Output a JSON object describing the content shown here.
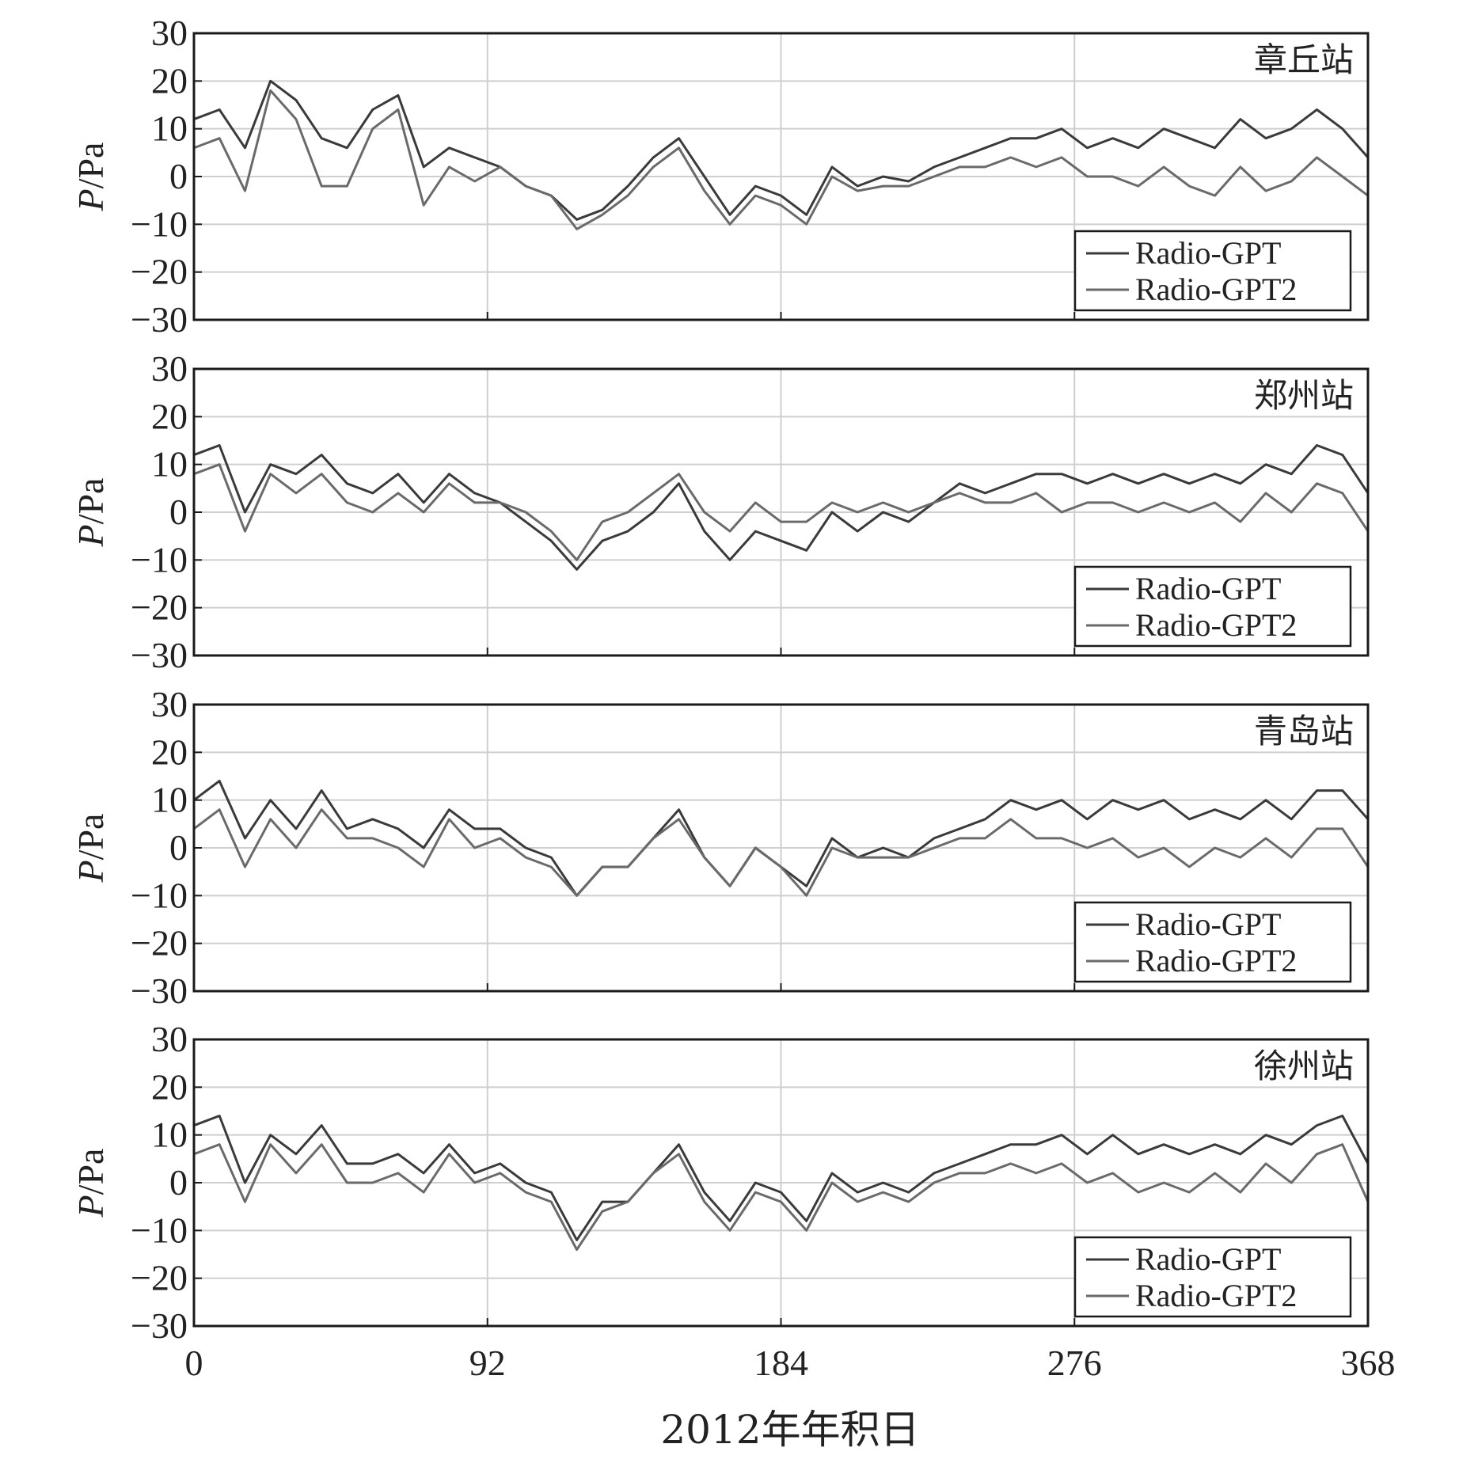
{
  "figure": {
    "xlabel": "2012年年积日",
    "colors": {
      "axes": "#1a1a1a",
      "grid": "#cfcfcf",
      "series_gpt": "#3a3a3a",
      "series_gpt2": "#6a6a6a"
    }
  },
  "chart_data": [
    {
      "type": "line",
      "station": "章丘站",
      "ylabel_italic": "P",
      "ylabel_unit": "/Pa",
      "xlim": [
        0,
        368
      ],
      "ylim": [
        -30,
        30
      ],
      "xticks": [
        0,
        92,
        184,
        276,
        368
      ],
      "yticks": [
        30,
        20,
        10,
        0,
        -10,
        -20,
        -30
      ],
      "ytick_labels": [
        "30",
        "20",
        "10",
        "0",
        "−10",
        "−20",
        "−30"
      ],
      "grid": true,
      "legend": "bottom-right",
      "series": [
        {
          "name": "Radio-GPT",
          "x": [
            0,
            8,
            16,
            24,
            32,
            40,
            48,
            56,
            64,
            72,
            80,
            88,
            96,
            104,
            112,
            120,
            128,
            136,
            144,
            152,
            160,
            168,
            176,
            184,
            192,
            200,
            208,
            216,
            224,
            232,
            240,
            248,
            256,
            264,
            272,
            280,
            288,
            296,
            304,
            312,
            320,
            328,
            336,
            344,
            352,
            360,
            368
          ],
          "values": [
            12,
            14,
            6,
            20,
            16,
            8,
            6,
            14,
            17,
            2,
            6,
            4,
            2,
            -2,
            -4,
            -9,
            -7,
            -2,
            4,
            8,
            0,
            -8,
            -2,
            -4,
            -8,
            2,
            -2,
            0,
            -1,
            2,
            4,
            6,
            8,
            8,
            10,
            6,
            8,
            6,
            10,
            8,
            6,
            12,
            8,
            10,
            14,
            10,
            4
          ]
        },
        {
          "name": "Radio-GPT2",
          "x": [
            0,
            8,
            16,
            24,
            32,
            40,
            48,
            56,
            64,
            72,
            80,
            88,
            96,
            104,
            112,
            120,
            128,
            136,
            144,
            152,
            160,
            168,
            176,
            184,
            192,
            200,
            208,
            216,
            224,
            232,
            240,
            248,
            256,
            264,
            272,
            280,
            288,
            296,
            304,
            312,
            320,
            328,
            336,
            344,
            352,
            360,
            368
          ],
          "values": [
            6,
            8,
            -3,
            18,
            12,
            -2,
            -2,
            10,
            14,
            -6,
            2,
            -1,
            2,
            -2,
            -4,
            -11,
            -8,
            -4,
            2,
            6,
            -3,
            -10,
            -4,
            -6,
            -10,
            0,
            -3,
            -2,
            -2,
            0,
            2,
            2,
            4,
            2,
            4,
            0,
            0,
            -2,
            2,
            -2,
            -4,
            2,
            -3,
            -1,
            4,
            0,
            -4
          ]
        }
      ]
    },
    {
      "type": "line",
      "station": "郑州站",
      "ylabel_italic": "P",
      "ylabel_unit": "/Pa",
      "xlim": [
        0,
        368
      ],
      "ylim": [
        -30,
        30
      ],
      "xticks": [
        0,
        92,
        184,
        276,
        368
      ],
      "yticks": [
        30,
        20,
        10,
        0,
        -10,
        -20,
        -30
      ],
      "ytick_labels": [
        "30",
        "20",
        "10",
        "0",
        "−10",
        "−20",
        "−30"
      ],
      "grid": true,
      "legend": "bottom-right",
      "series": [
        {
          "name": "Radio-GPT",
          "x": [
            0,
            8,
            16,
            24,
            32,
            40,
            48,
            56,
            64,
            72,
            80,
            88,
            96,
            104,
            112,
            120,
            128,
            136,
            144,
            152,
            160,
            168,
            176,
            184,
            192,
            200,
            208,
            216,
            224,
            232,
            240,
            248,
            256,
            264,
            272,
            280,
            288,
            296,
            304,
            312,
            320,
            328,
            336,
            344,
            352,
            360,
            368
          ],
          "values": [
            12,
            14,
            0,
            10,
            8,
            12,
            6,
            4,
            8,
            2,
            8,
            4,
            2,
            -2,
            -6,
            -12,
            -6,
            -4,
            0,
            6,
            -4,
            -10,
            -4,
            -6,
            -8,
            0,
            -4,
            0,
            -2,
            2,
            6,
            4,
            6,
            8,
            8,
            6,
            8,
            6,
            8,
            6,
            8,
            6,
            10,
            8,
            14,
            12,
            4
          ]
        },
        {
          "name": "Radio-GPT2",
          "x": [
            0,
            8,
            16,
            24,
            32,
            40,
            48,
            56,
            64,
            72,
            80,
            88,
            96,
            104,
            112,
            120,
            128,
            136,
            144,
            152,
            160,
            168,
            176,
            184,
            192,
            200,
            208,
            216,
            224,
            232,
            240,
            248,
            256,
            264,
            272,
            280,
            288,
            296,
            304,
            312,
            320,
            328,
            336,
            344,
            352,
            360,
            368
          ],
          "values": [
            8,
            10,
            -4,
            8,
            4,
            8,
            2,
            0,
            4,
            0,
            6,
            2,
            2,
            0,
            -4,
            -10,
            -2,
            0,
            4,
            8,
            0,
            -4,
            2,
            -2,
            -2,
            2,
            0,
            2,
            0,
            2,
            4,
            2,
            2,
            4,
            0,
            2,
            2,
            0,
            2,
            0,
            2,
            -2,
            4,
            0,
            6,
            4,
            -4
          ]
        }
      ]
    },
    {
      "type": "line",
      "station": "青岛站",
      "ylabel_italic": "P",
      "ylabel_unit": "/Pa",
      "xlim": [
        0,
        368
      ],
      "ylim": [
        -30,
        30
      ],
      "xticks": [
        0,
        92,
        184,
        276,
        368
      ],
      "yticks": [
        30,
        20,
        10,
        0,
        -10,
        -20,
        -30
      ],
      "ytick_labels": [
        "30",
        "20",
        "10",
        "0",
        "−10",
        "−20",
        "−30"
      ],
      "grid": true,
      "legend": "bottom-right",
      "series": [
        {
          "name": "Radio-GPT",
          "x": [
            0,
            8,
            16,
            24,
            32,
            40,
            48,
            56,
            64,
            72,
            80,
            88,
            96,
            104,
            112,
            120,
            128,
            136,
            144,
            152,
            160,
            168,
            176,
            184,
            192,
            200,
            208,
            216,
            224,
            232,
            240,
            248,
            256,
            264,
            272,
            280,
            288,
            296,
            304,
            312,
            320,
            328,
            336,
            344,
            352,
            360,
            368
          ],
          "values": [
            10,
            14,
            2,
            10,
            4,
            12,
            4,
            6,
            4,
            0,
            8,
            4,
            4,
            0,
            -2,
            -10,
            -4,
            -4,
            2,
            8,
            -2,
            -8,
            0,
            -4,
            -8,
            2,
            -2,
            0,
            -2,
            2,
            4,
            6,
            10,
            8,
            10,
            6,
            10,
            8,
            10,
            6,
            8,
            6,
            10,
            6,
            12,
            12,
            6
          ]
        },
        {
          "name": "Radio-GPT2",
          "x": [
            0,
            8,
            16,
            24,
            32,
            40,
            48,
            56,
            64,
            72,
            80,
            88,
            96,
            104,
            112,
            120,
            128,
            136,
            144,
            152,
            160,
            168,
            176,
            184,
            192,
            200,
            208,
            216,
            224,
            232,
            240,
            248,
            256,
            264,
            272,
            280,
            288,
            296,
            304,
            312,
            320,
            328,
            336,
            344,
            352,
            360,
            368
          ],
          "values": [
            4,
            8,
            -4,
            6,
            0,
            8,
            2,
            2,
            0,
            -4,
            6,
            0,
            2,
            -2,
            -4,
            -10,
            -4,
            -4,
            2,
            6,
            -2,
            -8,
            0,
            -4,
            -10,
            0,
            -2,
            -2,
            -2,
            0,
            2,
            2,
            6,
            2,
            2,
            0,
            2,
            -2,
            0,
            -4,
            0,
            -2,
            2,
            -2,
            4,
            4,
            -4
          ]
        }
      ]
    },
    {
      "type": "line",
      "station": "徐州站",
      "ylabel_italic": "P",
      "ylabel_unit": "/Pa",
      "xlim": [
        0,
        368
      ],
      "ylim": [
        -30,
        30
      ],
      "xticks": [
        0,
        92,
        184,
        276,
        368
      ],
      "yticks": [
        30,
        20,
        10,
        0,
        -10,
        -20,
        -30
      ],
      "ytick_labels": [
        "30",
        "20",
        "10",
        "0",
        "−10",
        "−20",
        "−30"
      ],
      "grid": true,
      "legend": "bottom-right",
      "series": [
        {
          "name": "Radio-GPT",
          "x": [
            0,
            8,
            16,
            24,
            32,
            40,
            48,
            56,
            64,
            72,
            80,
            88,
            96,
            104,
            112,
            120,
            128,
            136,
            144,
            152,
            160,
            168,
            176,
            184,
            192,
            200,
            208,
            216,
            224,
            232,
            240,
            248,
            256,
            264,
            272,
            280,
            288,
            296,
            304,
            312,
            320,
            328,
            336,
            344,
            352,
            360,
            368
          ],
          "values": [
            12,
            14,
            0,
            10,
            6,
            12,
            4,
            4,
            6,
            2,
            8,
            2,
            4,
            0,
            -2,
            -12,
            -4,
            -4,
            2,
            8,
            -2,
            -8,
            0,
            -2,
            -8,
            2,
            -2,
            0,
            -2,
            2,
            4,
            6,
            8,
            8,
            10,
            6,
            10,
            6,
            8,
            6,
            8,
            6,
            10,
            8,
            12,
            14,
            4
          ]
        },
        {
          "name": "Radio-GPT2",
          "x": [
            0,
            8,
            16,
            24,
            32,
            40,
            48,
            56,
            64,
            72,
            80,
            88,
            96,
            104,
            112,
            120,
            128,
            136,
            144,
            152,
            160,
            168,
            176,
            184,
            192,
            200,
            208,
            216,
            224,
            232,
            240,
            248,
            256,
            264,
            272,
            280,
            288,
            296,
            304,
            312,
            320,
            328,
            336,
            344,
            352,
            360,
            368
          ],
          "values": [
            6,
            8,
            -4,
            8,
            2,
            8,
            0,
            0,
            2,
            -2,
            6,
            0,
            2,
            -2,
            -4,
            -14,
            -6,
            -4,
            2,
            6,
            -4,
            -10,
            -2,
            -4,
            -10,
            0,
            -4,
            -2,
            -4,
            0,
            2,
            2,
            4,
            2,
            4,
            0,
            2,
            -2,
            0,
            -2,
            2,
            -2,
            4,
            0,
            6,
            8,
            -4
          ]
        }
      ]
    }
  ]
}
